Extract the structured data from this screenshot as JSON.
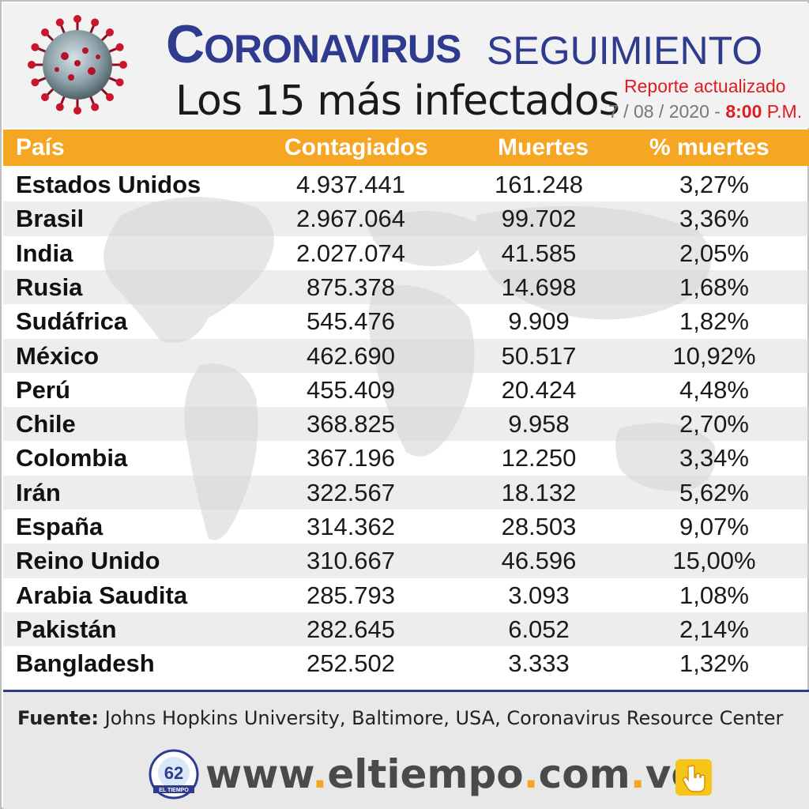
{
  "header": {
    "title_initial": "C",
    "title_rest": "ORONAVIRUS",
    "title_second": "SEGUIMIENTO",
    "subtitle": "Los 15 más infectados",
    "report_label": "Reporte actualizado",
    "report_date": "7 / 08 / 2020 - ",
    "report_time": "8:00",
    "report_ampm": " P.M."
  },
  "table": {
    "headers": {
      "country": "País",
      "cases": "Contagiados",
      "deaths": "Muertes",
      "pct": "% muertes"
    },
    "rows": [
      {
        "country": "Estados Unidos",
        "cases": "4.937.441",
        "deaths": "161.248",
        "pct": "3,27%"
      },
      {
        "country": "Brasil",
        "cases": "2.967.064",
        "deaths": "99.702",
        "pct": "3,36%"
      },
      {
        "country": "India",
        "cases": "2.027.074",
        "deaths": "41.585",
        "pct": "2,05%"
      },
      {
        "country": "Rusia",
        "cases": "875.378",
        "deaths": "14.698",
        "pct": "1,68%"
      },
      {
        "country": "Sudáfrica",
        "cases": "545.476",
        "deaths": "9.909",
        "pct": "1,82%"
      },
      {
        "country": "México",
        "cases": "462.690",
        "deaths": "50.517",
        "pct": "10,92%"
      },
      {
        "country": "Perú",
        "cases": "455.409",
        "deaths": "20.424",
        "pct": "4,48%"
      },
      {
        "country": "Chile",
        "cases": "368.825",
        "deaths": "9.958",
        "pct": "2,70%"
      },
      {
        "country": "Colombia",
        "cases": "367.196",
        "deaths": "12.250",
        "pct": "3,34%"
      },
      {
        "country": "Irán",
        "cases": "322.567",
        "deaths": "18.132",
        "pct": "5,62%"
      },
      {
        "country": "España",
        "cases": "314.362",
        "deaths": "28.503",
        "pct": "9,07%"
      },
      {
        "country": "Reino Unido",
        "cases": "310.667",
        "deaths": "46.596",
        "pct": "15,00%"
      },
      {
        "country": "Arabia Saudita",
        "cases": "285.793",
        "deaths": "3.093",
        "pct": "1,08%"
      },
      {
        "country": "Pakistán",
        "cases": "282.645",
        "deaths": "6.052",
        "pct": "2,14%"
      },
      {
        "country": "Bangladesh",
        "cases": "252.502",
        "deaths": "3.333",
        "pct": "1,32%"
      }
    ]
  },
  "footer": {
    "source_label": "Fuente:",
    "source_text": " Johns Hopkins University, Baltimore, USA, Coronavirus Resource Center",
    "url_part1": "www",
    "url_part2": "eltiempo",
    "url_part3": "com",
    "url_part4": "ve",
    "url_dot": ".",
    "logo_text": "EL TIEMPO",
    "logo_number": "62",
    "icons": [
      "virus-icon",
      "logo-icon",
      "hand-pointer-icon"
    ]
  },
  "colors": {
    "brand_blue": "#2e3b8f",
    "header_orange": "#f5a623",
    "accent_red": "#e01b22"
  }
}
